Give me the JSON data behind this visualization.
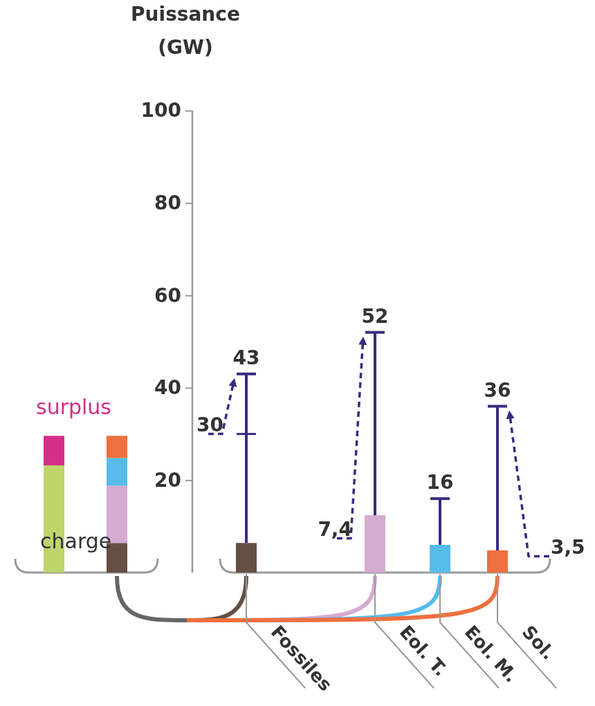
{
  "chart_data": [
    {
      "type": "bar",
      "stacked": true,
      "categories": [
        null,
        null
      ],
      "ylim": [
        0,
        100
      ],
      "series": [
        {
          "name": "charge",
          "color": "#bfd46b",
          "values": [
            23.2,
            null
          ]
        },
        {
          "name": "surplus",
          "color": "#d62e88",
          "values": [
            6.4,
            null
          ]
        },
        {
          "color": "#654f44",
          "values": [
            null,
            6.4
          ]
        },
        {
          "color": "#d4abd2",
          "values": [
            null,
            12.4
          ]
        },
        {
          "color": "#57bbea",
          "values": [
            null,
            6
          ]
        },
        {
          "color": "#ee6f3f",
          "values": [
            null,
            4.8
          ]
        }
      ]
    },
    {
      "type": "bar",
      "stacked": true,
      "ylabel": "Puissance (GW)",
      "categories": [
        "Fossiles",
        "Eol. T.",
        "Eol. M.",
        "Sol."
      ],
      "ylim": [
        0,
        100
      ],
      "yticks": [
        20,
        40,
        60,
        80,
        100
      ],
      "series": [
        {
          "color": "#654f44",
          "values": [
            6.4,
            null,
            null,
            null
          ],
          "errors": [
            [
              6.4,
              43
            ],
            null,
            null,
            null
          ]
        },
        {
          "color": "#d4abd2",
          "values": [
            null,
            12.4,
            null,
            null
          ],
          "errors": [
            null,
            [
              12.4,
              52
            ],
            null,
            null
          ]
        },
        {
          "color": "#57bbea",
          "values": [
            null,
            null,
            6,
            null
          ],
          "errors": [
            null,
            null,
            [
              6,
              16
            ],
            null
          ]
        },
        {
          "color": "#ee6f3f",
          "values": [
            null,
            null,
            null,
            4.8
          ],
          "errors": [
            null,
            null,
            null,
            [
              4.8,
              36
            ]
          ]
        }
      ],
      "annotations": [
        "43",
        "52",
        "16",
        "36",
        "30",
        "7,4",
        "3,5"
      ]
    }
  ]
}
